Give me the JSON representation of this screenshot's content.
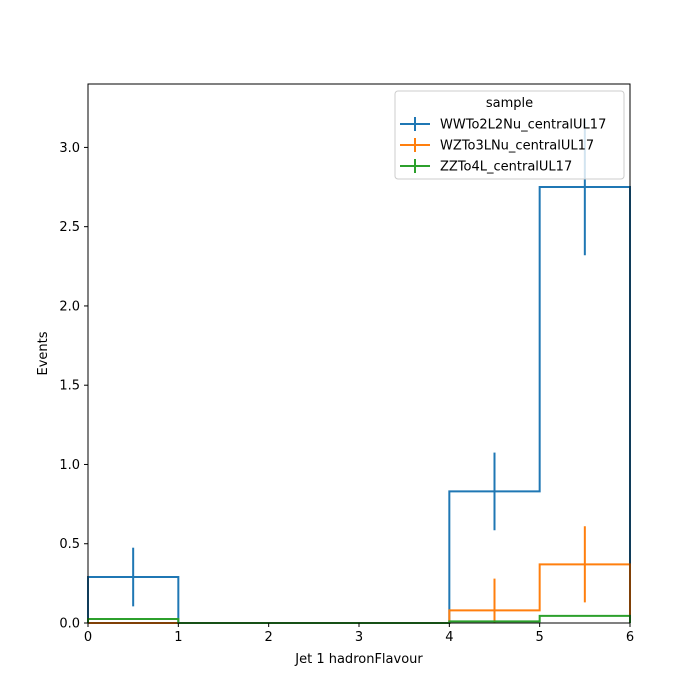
{
  "chart_data": {
    "type": "histogram-step",
    "xlabel": "Jet 1 hadronFlavour",
    "ylabel": "Events",
    "xlim": [
      0,
      6
    ],
    "ylim": [
      0,
      3.4
    ],
    "x_ticks": [
      "0",
      "1",
      "2",
      "3",
      "4",
      "5",
      "6"
    ],
    "y_ticks": [
      "0.0",
      "0.5",
      "1.0",
      "1.5",
      "2.0",
      "2.5",
      "3.0"
    ],
    "bin_edges": [
      0,
      1,
      2,
      3,
      4,
      5,
      6
    ],
    "legend": {
      "title": "sample",
      "placement": "top-right"
    },
    "series": [
      {
        "name": "WWTo2L2Nu_centralUL17",
        "color": "#1f77b4",
        "values": [
          0.29,
          0,
          0,
          0,
          0.83,
          2.75
        ],
        "errors": [
          0.185,
          0,
          0,
          0,
          0.245,
          0.43
        ]
      },
      {
        "name": "WZTo3LNu_centralUL17",
        "color": "#ff7f0e",
        "values": [
          0,
          0,
          0,
          0,
          0.08,
          0.37
        ],
        "errors": [
          0,
          0,
          0,
          0,
          0.2,
          0.24
        ]
      },
      {
        "name": "ZZTo4L_centralUL17",
        "color": "#2ca02c",
        "values": [
          0.025,
          0,
          0,
          0,
          0.01,
          0.045
        ],
        "errors": [
          0,
          0,
          0,
          0,
          0,
          0
        ]
      }
    ]
  }
}
